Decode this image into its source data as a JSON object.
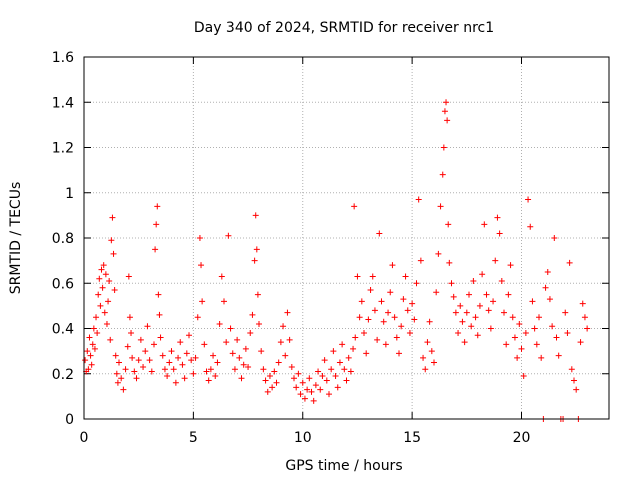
{
  "chart_data": {
    "type": "scatter",
    "title": "Day 340 of 2024, SRMTID for receiver nrc1",
    "xlabel": "GPS time / hours",
    "ylabel": "SRMTID / TECUs",
    "xlim": [
      0,
      24
    ],
    "ylim": [
      0,
      1.6
    ],
    "xticks": [
      0,
      5,
      10,
      15,
      20
    ],
    "yticks": [
      0,
      0.2,
      0.4,
      0.6,
      0.8,
      1,
      1.2,
      1.4,
      1.6
    ],
    "grid": true,
    "marker": "+",
    "color": "#ff0000",
    "series": [
      {
        "name": "nrc1",
        "points": [
          [
            0.05,
            0.26
          ],
          [
            0.1,
            0.21
          ],
          [
            0.15,
            0.3
          ],
          [
            0.2,
            0.22
          ],
          [
            0.25,
            0.36
          ],
          [
            0.3,
            0.28
          ],
          [
            0.35,
            0.24
          ],
          [
            0.4,
            0.33
          ],
          [
            0.45,
            0.4
          ],
          [
            0.5,
            0.31
          ],
          [
            0.55,
            0.45
          ],
          [
            0.6,
            0.38
          ],
          [
            0.65,
            0.55
          ],
          [
            0.7,
            0.62
          ],
          [
            0.75,
            0.5
          ],
          [
            0.8,
            0.66
          ],
          [
            0.85,
            0.58
          ],
          [
            0.9,
            0.68
          ],
          [
            0.95,
            0.47
          ],
          [
            1.0,
            0.64
          ],
          [
            1.05,
            0.42
          ],
          [
            1.1,
            0.52
          ],
          [
            1.15,
            0.61
          ],
          [
            1.2,
            0.35
          ],
          [
            1.25,
            0.79
          ],
          [
            1.3,
            0.89
          ],
          [
            1.35,
            0.73
          ],
          [
            1.4,
            0.57
          ],
          [
            1.45,
            0.28
          ],
          [
            1.5,
            0.2
          ],
          [
            1.55,
            0.16
          ],
          [
            1.6,
            0.25
          ],
          [
            1.7,
            0.18
          ],
          [
            1.8,
            0.13
          ],
          [
            1.9,
            0.22
          ],
          [
            2.0,
            0.32
          ],
          [
            2.05,
            0.63
          ],
          [
            2.1,
            0.45
          ],
          [
            2.15,
            0.38
          ],
          [
            2.2,
            0.27
          ],
          [
            2.3,
            0.21
          ],
          [
            2.4,
            0.18
          ],
          [
            2.5,
            0.26
          ],
          [
            2.6,
            0.35
          ],
          [
            2.7,
            0.23
          ],
          [
            2.8,
            0.3
          ],
          [
            2.9,
            0.41
          ],
          [
            3.0,
            0.26
          ],
          [
            3.1,
            0.21
          ],
          [
            3.2,
            0.33
          ],
          [
            3.25,
            0.75
          ],
          [
            3.3,
            0.86
          ],
          [
            3.35,
            0.94
          ],
          [
            3.4,
            0.55
          ],
          [
            3.45,
            0.46
          ],
          [
            3.5,
            0.36
          ],
          [
            3.6,
            0.28
          ],
          [
            3.7,
            0.22
          ],
          [
            3.8,
            0.19
          ],
          [
            3.9,
            0.25
          ],
          [
            4.0,
            0.3
          ],
          [
            4.1,
            0.22
          ],
          [
            4.2,
            0.16
          ],
          [
            4.3,
            0.27
          ],
          [
            4.4,
            0.34
          ],
          [
            4.5,
            0.24
          ],
          [
            4.6,
            0.18
          ],
          [
            4.7,
            0.29
          ],
          [
            4.8,
            0.37
          ],
          [
            4.9,
            0.26
          ],
          [
            5.0,
            0.2
          ],
          [
            5.1,
            0.27
          ],
          [
            5.2,
            0.45
          ],
          [
            5.3,
            0.8
          ],
          [
            5.35,
            0.68
          ],
          [
            5.4,
            0.52
          ],
          [
            5.5,
            0.33
          ],
          [
            5.6,
            0.21
          ],
          [
            5.7,
            0.17
          ],
          [
            5.8,
            0.22
          ],
          [
            5.9,
            0.28
          ],
          [
            6.0,
            0.19
          ],
          [
            6.1,
            0.25
          ],
          [
            6.2,
            0.42
          ],
          [
            6.3,
            0.63
          ],
          [
            6.4,
            0.52
          ],
          [
            6.5,
            0.34
          ],
          [
            6.6,
            0.81
          ],
          [
            6.7,
            0.4
          ],
          [
            6.8,
            0.29
          ],
          [
            6.9,
            0.22
          ],
          [
            7.0,
            0.35
          ],
          [
            7.1,
            0.27
          ],
          [
            7.2,
            0.18
          ],
          [
            7.3,
            0.24
          ],
          [
            7.4,
            0.31
          ],
          [
            7.5,
            0.23
          ],
          [
            7.6,
            0.38
          ],
          [
            7.7,
            0.46
          ],
          [
            7.8,
            0.7
          ],
          [
            7.85,
            0.9
          ],
          [
            7.9,
            0.75
          ],
          [
            7.95,
            0.55
          ],
          [
            8.0,
            0.42
          ],
          [
            8.1,
            0.3
          ],
          [
            8.2,
            0.22
          ],
          [
            8.3,
            0.17
          ],
          [
            8.4,
            0.12
          ],
          [
            8.5,
            0.19
          ],
          [
            8.6,
            0.14
          ],
          [
            8.7,
            0.21
          ],
          [
            8.8,
            0.16
          ],
          [
            8.9,
            0.25
          ],
          [
            9.0,
            0.34
          ],
          [
            9.1,
            0.41
          ],
          [
            9.2,
            0.28
          ],
          [
            9.3,
            0.47
          ],
          [
            9.4,
            0.35
          ],
          [
            9.5,
            0.23
          ],
          [
            9.6,
            0.18
          ],
          [
            9.7,
            0.14
          ],
          [
            9.8,
            0.2
          ],
          [
            9.9,
            0.11
          ],
          [
            10.0,
            0.16
          ],
          [
            10.1,
            0.09
          ],
          [
            10.2,
            0.13
          ],
          [
            10.3,
            0.18
          ],
          [
            10.4,
            0.12
          ],
          [
            10.5,
            0.08
          ],
          [
            10.6,
            0.15
          ],
          [
            10.7,
            0.21
          ],
          [
            10.8,
            0.13
          ],
          [
            10.9,
            0.19
          ],
          [
            11.0,
            0.26
          ],
          [
            11.1,
            0.17
          ],
          [
            11.2,
            0.11
          ],
          [
            11.3,
            0.22
          ],
          [
            11.4,
            0.3
          ],
          [
            11.5,
            0.19
          ],
          [
            11.6,
            0.14
          ],
          [
            11.7,
            0.25
          ],
          [
            11.8,
            0.33
          ],
          [
            11.9,
            0.22
          ],
          [
            12.0,
            0.17
          ],
          [
            12.1,
            0.27
          ],
          [
            12.2,
            0.21
          ],
          [
            12.3,
            0.31
          ],
          [
            12.35,
            0.94
          ],
          [
            12.4,
            0.36
          ],
          [
            12.5,
            0.63
          ],
          [
            12.6,
            0.45
          ],
          [
            12.7,
            0.52
          ],
          [
            12.8,
            0.38
          ],
          [
            12.9,
            0.29
          ],
          [
            13.0,
            0.44
          ],
          [
            13.1,
            0.57
          ],
          [
            13.2,
            0.63
          ],
          [
            13.3,
            0.48
          ],
          [
            13.4,
            0.35
          ],
          [
            13.5,
            0.82
          ],
          [
            13.6,
            0.52
          ],
          [
            13.7,
            0.43
          ],
          [
            13.8,
            0.33
          ],
          [
            13.9,
            0.47
          ],
          [
            14.0,
            0.56
          ],
          [
            14.1,
            0.68
          ],
          [
            14.2,
            0.45
          ],
          [
            14.3,
            0.36
          ],
          [
            14.4,
            0.29
          ],
          [
            14.5,
            0.41
          ],
          [
            14.6,
            0.53
          ],
          [
            14.7,
            0.63
          ],
          [
            14.8,
            0.48
          ],
          [
            14.9,
            0.38
          ],
          [
            15.0,
            0.51
          ],
          [
            15.1,
            0.44
          ],
          [
            15.2,
            0.6
          ],
          [
            15.3,
            0.97
          ],
          [
            15.4,
            0.7
          ],
          [
            15.5,
            0.27
          ],
          [
            15.6,
            0.22
          ],
          [
            15.7,
            0.34
          ],
          [
            15.8,
            0.43
          ],
          [
            15.9,
            0.3
          ],
          [
            16.0,
            0.25
          ],
          [
            16.1,
            0.56
          ],
          [
            16.2,
            0.73
          ],
          [
            16.3,
            0.94
          ],
          [
            16.4,
            1.08
          ],
          [
            16.45,
            1.2
          ],
          [
            16.5,
            1.36
          ],
          [
            16.55,
            1.4
          ],
          [
            16.6,
            1.32
          ],
          [
            16.65,
            0.86
          ],
          [
            16.7,
            0.69
          ],
          [
            16.8,
            0.6
          ],
          [
            16.9,
            0.54
          ],
          [
            17.0,
            0.47
          ],
          [
            17.1,
            0.38
          ],
          [
            17.2,
            0.5
          ],
          [
            17.3,
            0.43
          ],
          [
            17.4,
            0.34
          ],
          [
            17.5,
            0.47
          ],
          [
            17.6,
            0.55
          ],
          [
            17.7,
            0.41
          ],
          [
            17.8,
            0.61
          ],
          [
            17.9,
            0.45
          ],
          [
            18.0,
            0.37
          ],
          [
            18.1,
            0.5
          ],
          [
            18.2,
            0.64
          ],
          [
            18.3,
            0.86
          ],
          [
            18.4,
            0.55
          ],
          [
            18.5,
            0.48
          ],
          [
            18.6,
            0.4
          ],
          [
            18.7,
            0.52
          ],
          [
            18.8,
            0.7
          ],
          [
            18.9,
            0.89
          ],
          [
            19.0,
            0.82
          ],
          [
            19.1,
            0.61
          ],
          [
            19.2,
            0.47
          ],
          [
            19.3,
            0.33
          ],
          [
            19.4,
            0.55
          ],
          [
            19.5,
            0.68
          ],
          [
            19.6,
            0.45
          ],
          [
            19.7,
            0.36
          ],
          [
            19.8,
            0.27
          ],
          [
            19.9,
            0.42
          ],
          [
            20.0,
            0.31
          ],
          [
            20.1,
            0.19
          ],
          [
            20.2,
            0.38
          ],
          [
            20.3,
            0.97
          ],
          [
            20.4,
            0.85
          ],
          [
            20.5,
            0.52
          ],
          [
            20.6,
            0.4
          ],
          [
            20.7,
            0.33
          ],
          [
            20.8,
            0.45
          ],
          [
            20.9,
            0.27
          ],
          [
            21.0,
            0.0
          ],
          [
            21.1,
            0.58
          ],
          [
            21.2,
            0.65
          ],
          [
            21.3,
            0.53
          ],
          [
            21.4,
            0.41
          ],
          [
            21.5,
            0.8
          ],
          [
            21.6,
            0.36
          ],
          [
            21.7,
            0.28
          ],
          [
            21.8,
            0.0
          ],
          [
            21.9,
            0.0
          ],
          [
            22.0,
            0.47
          ],
          [
            22.1,
            0.38
          ],
          [
            22.2,
            0.69
          ],
          [
            22.3,
            0.22
          ],
          [
            22.4,
            0.17
          ],
          [
            22.5,
            0.13
          ],
          [
            22.6,
            0.0
          ],
          [
            22.7,
            0.34
          ],
          [
            22.8,
            0.51
          ],
          [
            22.9,
            0.45
          ],
          [
            23.0,
            0.4
          ]
        ]
      }
    ]
  }
}
